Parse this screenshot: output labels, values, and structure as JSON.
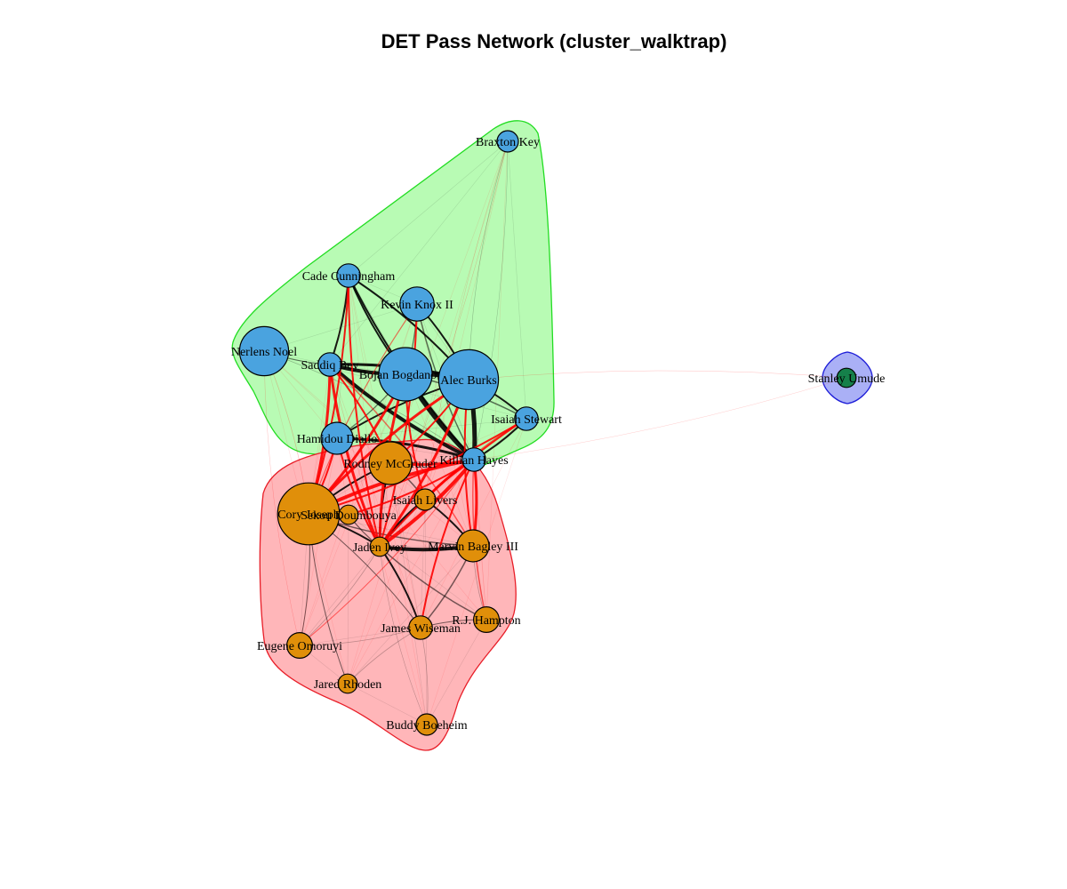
{
  "title": "DET Pass Network (cluster_walktrap)",
  "colors": {
    "blue_cluster": "#4aa3df",
    "orange_cluster": "#e08f0a",
    "green_cluster": "#15804a",
    "hull_green_fill": "#b8fbb4",
    "hull_green_stroke": "#22dd22",
    "hull_red_fill": "#ffb6b9",
    "hull_red_stroke": "#e81e28",
    "hull_blue_fill": "#aab0f6",
    "hull_blue_stroke": "#1c1cd8",
    "edge_within": "#000000",
    "edge_between": "#ff0000"
  },
  "clusters": [
    {
      "id": "green",
      "members": [
        "Braxton Key",
        "Cade Cunningham",
        "Kevin Knox II",
        "Nerlens Noel",
        "Saddiq Bey",
        "Bojan Bogdanović",
        "Alec Burks",
        "Isaiah Stewart",
        "Hamidou Diallo",
        "Killian Hayes"
      ]
    },
    {
      "id": "red",
      "members": [
        "Rodney McGruder",
        "Cory Joseph",
        "Sekou Doumbouya",
        "Isaiah Livers",
        "Jaden Ivey",
        "Marvin Bagley III",
        "R.J. Hampton",
        "James Wiseman",
        "Eugene Omoruyi",
        "Jared Rhoden",
        "Buddy Boeheim"
      ]
    },
    {
      "id": "blue",
      "members": [
        "Stanley Umude"
      ]
    }
  ],
  "nodes": [
    {
      "name": "Braxton Key",
      "label": "Braxton Key",
      "cluster": "blue_cluster",
      "weight": 1.0
    },
    {
      "name": "Cade Cunningham",
      "label": "Cade Cunningham",
      "cluster": "blue_cluster",
      "weight": 1.1
    },
    {
      "name": "Kevin Knox II",
      "label": "Kevin Knox II",
      "cluster": "blue_cluster",
      "weight": 1.6
    },
    {
      "name": "Nerlens Noel",
      "label": "Nerlens Noel",
      "cluster": "blue_cluster",
      "weight": 2.3
    },
    {
      "name": "Saddiq Bey",
      "label": "Saddiq Bey",
      "cluster": "blue_cluster",
      "weight": 1.1
    },
    {
      "name": "Bojan Bogdanović",
      "label": "Bojan Bogdanović",
      "cluster": "blue_cluster",
      "weight": 2.5
    },
    {
      "name": "Alec Burks",
      "label": "Alec Burks",
      "cluster": "blue_cluster",
      "weight": 2.8
    },
    {
      "name": "Isaiah Stewart",
      "label": "Isaiah Stewart",
      "cluster": "blue_cluster",
      "weight": 1.1
    },
    {
      "name": "Hamidou Diallo",
      "label": "Hamidou Diallo",
      "cluster": "blue_cluster",
      "weight": 1.5
    },
    {
      "name": "Killian Hayes",
      "label": "Killian Hayes",
      "cluster": "blue_cluster",
      "weight": 1.1
    },
    {
      "name": "Rodney McGruder",
      "label": "Rodney McGruder",
      "cluster": "orange_cluster",
      "weight": 2.0
    },
    {
      "name": "Cory Joseph",
      "label": "Cory Joseph",
      "cluster": "orange_cluster",
      "weight": 2.9
    },
    {
      "name": "Sekou Doumbouya",
      "label": "Sekou Doumbouya",
      "cluster": "orange_cluster",
      "weight": 0.9
    },
    {
      "name": "Isaiah Livers",
      "label": "Isaiah Livers",
      "cluster": "orange_cluster",
      "weight": 1.0
    },
    {
      "name": "Jaden Ivey",
      "label": "Jaden Ivey",
      "cluster": "orange_cluster",
      "weight": 0.9
    },
    {
      "name": "Marvin Bagley III",
      "label": "Marvin Bagley III",
      "cluster": "orange_cluster",
      "weight": 1.5
    },
    {
      "name": "R.J. Hampton",
      "label": "R.J. Hampton",
      "cluster": "orange_cluster",
      "weight": 1.2
    },
    {
      "name": "James Wiseman",
      "label": "James Wiseman",
      "cluster": "orange_cluster",
      "weight": 1.1
    },
    {
      "name": "Eugene Omoruyi",
      "label": "Eugene Omoruyi",
      "cluster": "orange_cluster",
      "weight": 1.2
    },
    {
      "name": "Jared Rhoden",
      "label": "Jared Rhoden",
      "cluster": "orange_cluster",
      "weight": 0.9
    },
    {
      "name": "Buddy Boeheim",
      "label": "Buddy Boeheim",
      "cluster": "orange_cluster",
      "weight": 1.0
    },
    {
      "name": "Stanley Umude",
      "label": "Stanley Umude",
      "cluster": "green_cluster",
      "weight": 0.9
    }
  ]
}
